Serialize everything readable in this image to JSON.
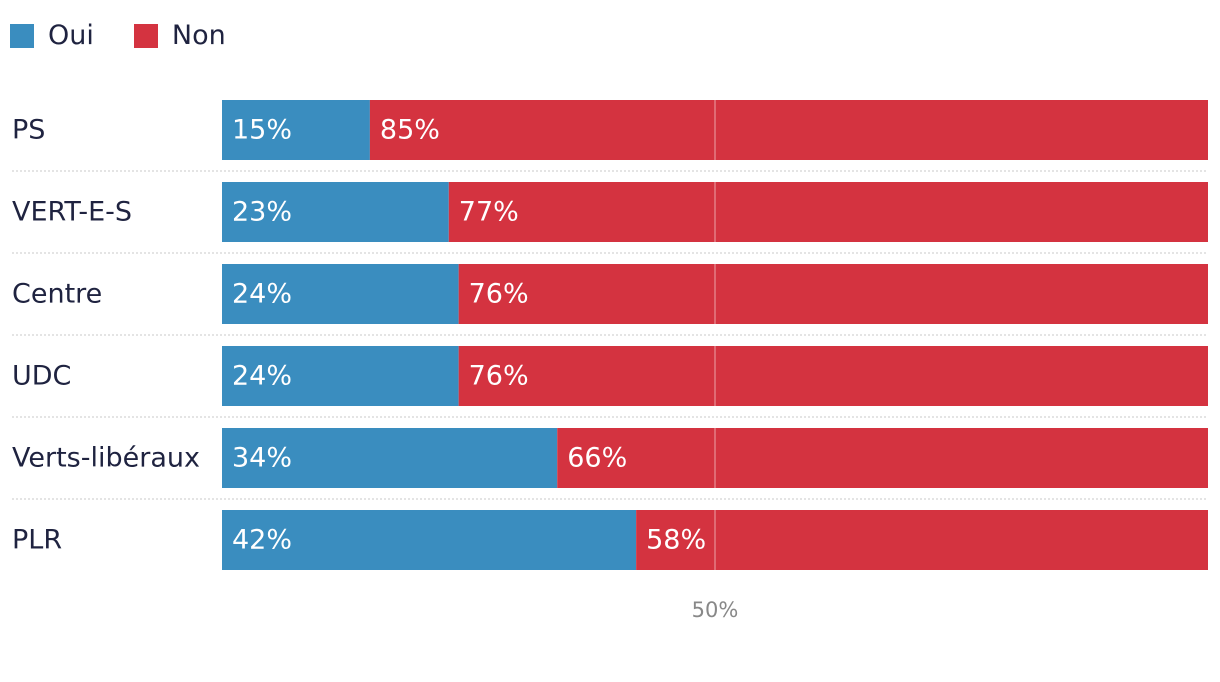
{
  "legend": [
    {
      "label": "Oui",
      "color": "#3a8dbf"
    },
    {
      "label": "Non",
      "color": "#d43340"
    }
  ],
  "chart_data": {
    "type": "bar",
    "orientation": "horizontal",
    "stacked": true,
    "categories": [
      "PS",
      "VERT-E-S",
      "Centre",
      "UDC",
      "Verts-libéraux",
      "PLR"
    ],
    "series": [
      {
        "name": "Oui",
        "color": "#3a8dbf",
        "values": [
          15,
          23,
          24,
          24,
          34,
          42
        ]
      },
      {
        "name": "Non",
        "color": "#d43340",
        "values": [
          85,
          77,
          76,
          76,
          66,
          58
        ]
      }
    ],
    "value_suffix": "%",
    "xlim": [
      0,
      100
    ],
    "reference_line": {
      "value": 50,
      "label": "50%"
    }
  }
}
